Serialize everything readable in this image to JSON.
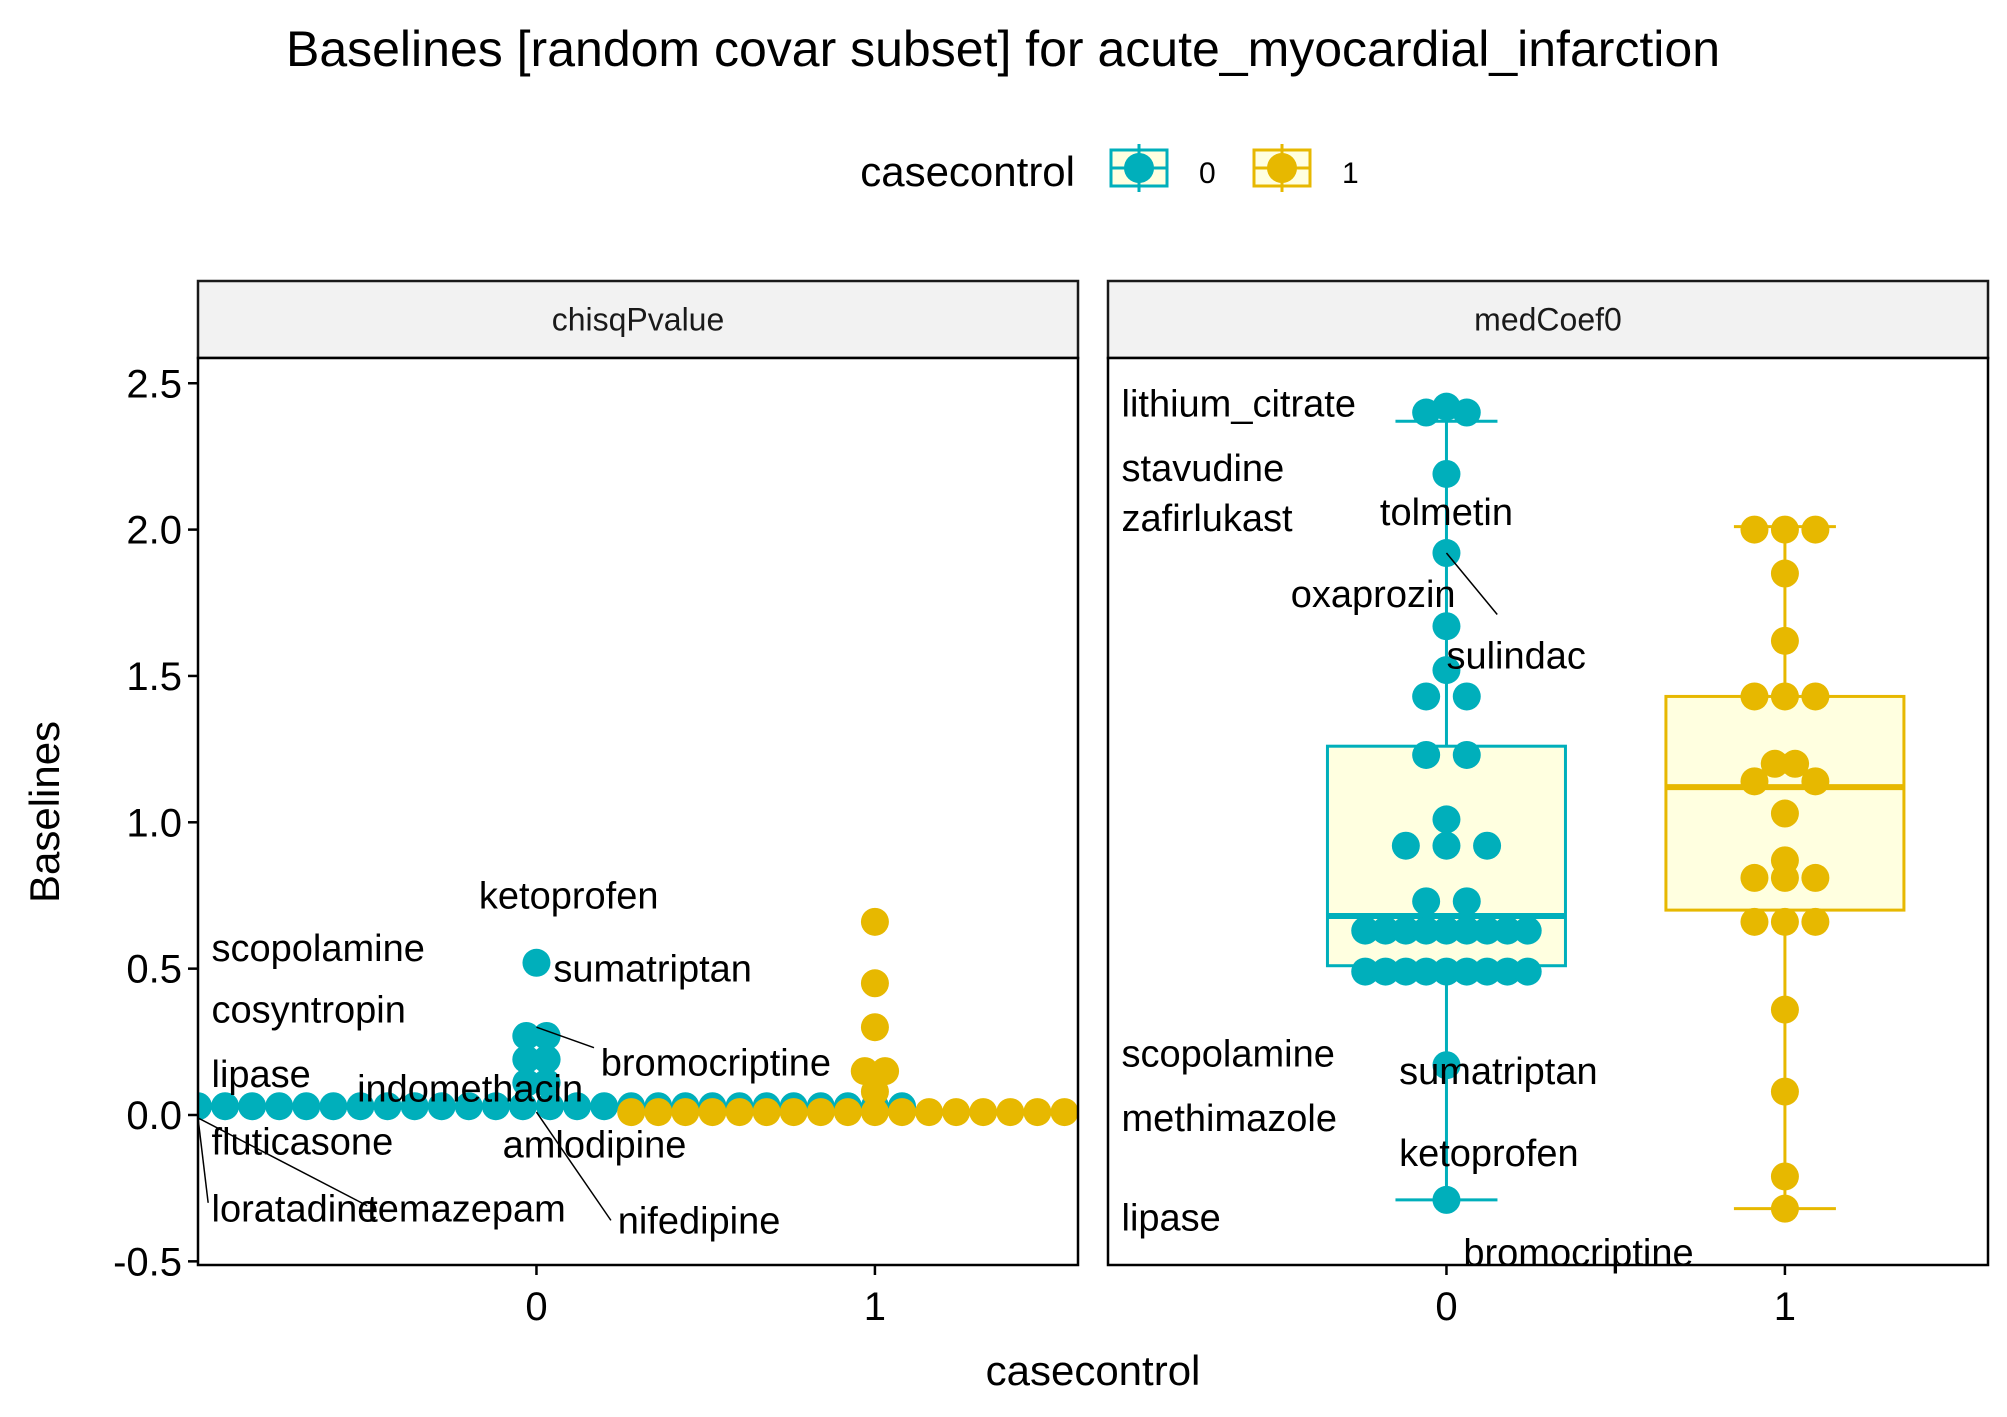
{
  "chart_data": {
    "type": "scatter",
    "title": "Baselines [random covar subset] for acute_myocardial_infarction",
    "xlabel": "casecontrol",
    "ylabel": "Baselines",
    "legend": {
      "title": "casecontrol",
      "position": "top",
      "entries": [
        {
          "label": "0",
          "color": "#00AFBB"
        },
        {
          "label": "1",
          "color": "#E7B800"
        }
      ]
    },
    "categories": [
      "0",
      "1"
    ],
    "ylim": [
      -0.5,
      2.6
    ],
    "yticks": [
      "-0.5",
      "0.0",
      "0.5",
      "1.0",
      "1.5",
      "2.0",
      "2.5"
    ],
    "ytick_values": [
      -0.5,
      0.0,
      0.5,
      1.0,
      1.5,
      2.0,
      2.5
    ],
    "xticks": [
      "0",
      "1"
    ],
    "box_fill": "#FFFFE0",
    "panels": [
      {
        "strip": "chisqPvalue",
        "boxplot": false,
        "series": [
          {
            "name": "0",
            "color": "#00AFBB",
            "points": [
              {
                "x": -1.0,
                "y": 0.03
              },
              {
                "x": -0.92,
                "y": 0.03
              },
              {
                "x": -0.84,
                "y": 0.03
              },
              {
                "x": -0.76,
                "y": 0.03
              },
              {
                "x": -0.68,
                "y": 0.03
              },
              {
                "x": -0.6,
                "y": 0.03
              },
              {
                "x": -0.52,
                "y": 0.03
              },
              {
                "x": -0.44,
                "y": 0.03
              },
              {
                "x": -0.36,
                "y": 0.03
              },
              {
                "x": -0.28,
                "y": 0.03
              },
              {
                "x": -0.2,
                "y": 0.03
              },
              {
                "x": -0.12,
                "y": 0.03
              },
              {
                "x": -0.04,
                "y": 0.03
              },
              {
                "x": 0.04,
                "y": 0.03
              },
              {
                "x": 0.12,
                "y": 0.03
              },
              {
                "x": 0.2,
                "y": 0.03
              },
              {
                "x": 0.28,
                "y": 0.03
              },
              {
                "x": 0.36,
                "y": 0.03
              },
              {
                "x": 0.44,
                "y": 0.03
              },
              {
                "x": 0.52,
                "y": 0.03
              },
              {
                "x": 0.6,
                "y": 0.03
              },
              {
                "x": 0.68,
                "y": 0.03
              },
              {
                "x": 0.76,
                "y": 0.03
              },
              {
                "x": 0.84,
                "y": 0.03
              },
              {
                "x": 0.92,
                "y": 0.03
              },
              {
                "x": 1.0,
                "y": 0.03
              },
              {
                "x": 1.08,
                "y": 0.03
              },
              {
                "x": -0.03,
                "y": 0.27
              },
              {
                "x": 0.03,
                "y": 0.27
              },
              {
                "x": -0.03,
                "y": 0.19
              },
              {
                "x": 0.03,
                "y": 0.19
              },
              {
                "x": -0.03,
                "y": 0.11
              },
              {
                "x": 0.03,
                "y": 0.11
              },
              {
                "x": 0.0,
                "y": 0.52
              }
            ]
          },
          {
            "name": "1",
            "color": "#E7B800",
            "points": [
              {
                "x": 0.28,
                "y": 0.01
              },
              {
                "x": 0.36,
                "y": 0.01
              },
              {
                "x": 0.44,
                "y": 0.01
              },
              {
                "x": 0.52,
                "y": 0.01
              },
              {
                "x": 0.6,
                "y": 0.01
              },
              {
                "x": 0.68,
                "y": 0.01
              },
              {
                "x": 0.76,
                "y": 0.01
              },
              {
                "x": 0.84,
                "y": 0.01
              },
              {
                "x": 0.92,
                "y": 0.01
              },
              {
                "x": 1.0,
                "y": 0.01
              },
              {
                "x": 1.08,
                "y": 0.01
              },
              {
                "x": 1.16,
                "y": 0.01
              },
              {
                "x": 1.24,
                "y": 0.01
              },
              {
                "x": 1.32,
                "y": 0.01
              },
              {
                "x": 1.4,
                "y": 0.01
              },
              {
                "x": 1.48,
                "y": 0.01
              },
              {
                "x": 1.56,
                "y": 0.01
              },
              {
                "x": 1.0,
                "y": 0.66
              },
              {
                "x": 1.0,
                "y": 0.45
              },
              {
                "x": 1.0,
                "y": 0.3
              },
              {
                "x": 0.97,
                "y": 0.15
              },
              {
                "x": 1.03,
                "y": 0.15
              },
              {
                "x": 1.0,
                "y": 0.08
              }
            ]
          }
        ],
        "labels": [
          {
            "text": "scopolamine",
            "x": -0.96,
            "y": 0.57,
            "anchor": "start"
          },
          {
            "text": "cosyntropin",
            "x": -0.96,
            "y": 0.36,
            "anchor": "start"
          },
          {
            "text": "lipase",
            "x": -0.96,
            "y": 0.14,
            "anchor": "start"
          },
          {
            "text": "indomethacin",
            "x": -0.53,
            "y": 0.09,
            "anchor": "start"
          },
          {
            "text": "fluticasone",
            "x": -0.96,
            "y": -0.09,
            "anchor": "start"
          },
          {
            "text": "loratadine",
            "x": -0.96,
            "y": -0.32,
            "anchor": "start"
          },
          {
            "text": "temazepam",
            "x": -0.5,
            "y": -0.32,
            "anchor": "start"
          },
          {
            "text": "ketoprofen",
            "x": -0.17,
            "y": 0.75,
            "anchor": "start"
          },
          {
            "text": "sumatriptan",
            "x": 0.05,
            "y": 0.5,
            "anchor": "start"
          },
          {
            "text": "bromocriptine",
            "x": 0.19,
            "y": 0.18,
            "anchor": "start"
          },
          {
            "text": "amlodipine",
            "x": -0.1,
            "y": -0.1,
            "anchor": "start"
          },
          {
            "text": "nifedipine",
            "x": 0.24,
            "y": -0.36,
            "anchor": "start"
          }
        ],
        "segments": [
          {
            "x1": -1.0,
            "y1": -0.01,
            "x2": -0.97,
            "y2": -0.3
          },
          {
            "x1": -1.0,
            "y1": -0.01,
            "x2": -0.5,
            "y2": -0.31
          },
          {
            "x1": 0.0,
            "y1": 0.01,
            "x2": 0.22,
            "y2": -0.36
          },
          {
            "x1": 0.0,
            "y1": 0.3,
            "x2": 0.17,
            "y2": 0.23
          }
        ]
      },
      {
        "strip": "medCoef0",
        "boxplot": true,
        "series": [
          {
            "name": "0",
            "color": "#00AFBB",
            "box": {
              "q1": 0.51,
              "median": 0.68,
              "q3": 1.26,
              "whisker_low": -0.29,
              "whisker_high": 2.37
            },
            "points": [
              {
                "x": 0.0,
                "y": 2.42
              },
              {
                "x": -0.06,
                "y": 2.4
              },
              {
                "x": 0.06,
                "y": 2.4
              },
              {
                "x": 0.0,
                "y": 2.19
              },
              {
                "x": 0.0,
                "y": 1.92
              },
              {
                "x": 0.0,
                "y": 1.67
              },
              {
                "x": 0.0,
                "y": 1.52
              },
              {
                "x": -0.06,
                "y": 1.43
              },
              {
                "x": 0.06,
                "y": 1.43
              },
              {
                "x": -0.06,
                "y": 1.23
              },
              {
                "x": 0.06,
                "y": 1.23
              },
              {
                "x": 0.0,
                "y": 1.01
              },
              {
                "x": -0.12,
                "y": 0.92
              },
              {
                "x": 0.0,
                "y": 0.92
              },
              {
                "x": 0.12,
                "y": 0.92
              },
              {
                "x": -0.06,
                "y": 0.73
              },
              {
                "x": 0.06,
                "y": 0.73
              },
              {
                "x": -0.24,
                "y": 0.63
              },
              {
                "x": -0.18,
                "y": 0.63
              },
              {
                "x": -0.12,
                "y": 0.63
              },
              {
                "x": -0.06,
                "y": 0.63
              },
              {
                "x": 0.0,
                "y": 0.63
              },
              {
                "x": 0.06,
                "y": 0.63
              },
              {
                "x": 0.12,
                "y": 0.63
              },
              {
                "x": 0.18,
                "y": 0.63
              },
              {
                "x": 0.24,
                "y": 0.63
              },
              {
                "x": -0.24,
                "y": 0.49
              },
              {
                "x": -0.18,
                "y": 0.49
              },
              {
                "x": -0.12,
                "y": 0.49
              },
              {
                "x": -0.06,
                "y": 0.49
              },
              {
                "x": 0.0,
                "y": 0.49
              },
              {
                "x": 0.06,
                "y": 0.49
              },
              {
                "x": 0.12,
                "y": 0.49
              },
              {
                "x": 0.18,
                "y": 0.49
              },
              {
                "x": 0.24,
                "y": 0.49
              },
              {
                "x": 0.0,
                "y": 0.17
              },
              {
                "x": 0.0,
                "y": -0.29
              }
            ]
          },
          {
            "name": "1",
            "color": "#E7B800",
            "box": {
              "q1": 0.7,
              "median": 1.12,
              "q3": 1.43,
              "whisker_low": -0.32,
              "whisker_high": 2.01
            },
            "points": [
              {
                "x": -0.09,
                "y": 2.0
              },
              {
                "x": 0.0,
                "y": 2.0
              },
              {
                "x": 0.09,
                "y": 2.0
              },
              {
                "x": 0.0,
                "y": 1.85
              },
              {
                "x": 0.0,
                "y": 1.62
              },
              {
                "x": -0.09,
                "y": 1.43
              },
              {
                "x": 0.0,
                "y": 1.43
              },
              {
                "x": 0.09,
                "y": 1.43
              },
              {
                "x": -0.03,
                "y": 1.2
              },
              {
                "x": 0.03,
                "y": 1.2
              },
              {
                "x": -0.09,
                "y": 1.14
              },
              {
                "x": 0.09,
                "y": 1.14
              },
              {
                "x": 0.0,
                "y": 1.03
              },
              {
                "x": 0.0,
                "y": 0.87
              },
              {
                "x": -0.09,
                "y": 0.81
              },
              {
                "x": 0.0,
                "y": 0.81
              },
              {
                "x": 0.09,
                "y": 0.81
              },
              {
                "x": -0.09,
                "y": 0.66
              },
              {
                "x": 0.0,
                "y": 0.66
              },
              {
                "x": 0.09,
                "y": 0.66
              },
              {
                "x": 0.0,
                "y": 0.36
              },
              {
                "x": 0.0,
                "y": 0.08
              },
              {
                "x": 0.0,
                "y": -0.21
              },
              {
                "x": 0.0,
                "y": -0.32
              }
            ]
          }
        ],
        "labels": [
          {
            "text": "lithium_citrate",
            "x": -0.96,
            "y": 2.43,
            "anchor": "start"
          },
          {
            "text": "stavudine",
            "x": -0.96,
            "y": 2.21,
            "anchor": "start"
          },
          {
            "text": "zafirlukast",
            "x": -0.96,
            "y": 2.04,
            "anchor": "start"
          },
          {
            "text": "tolmetin",
            "x": 0.0,
            "y": 2.06,
            "anchor": "middle"
          },
          {
            "text": "oxaprozin",
            "x": -0.46,
            "y": 1.78,
            "anchor": "start"
          },
          {
            "text": "sulindac",
            "x": 0.0,
            "y": 1.57,
            "anchor": "start"
          },
          {
            "text": "scopolamine",
            "x": -0.96,
            "y": 0.21,
            "anchor": "start"
          },
          {
            "text": "sumatriptan",
            "x": -0.14,
            "y": 0.15,
            "anchor": "start"
          },
          {
            "text": "methimazole",
            "x": -0.96,
            "y": -0.01,
            "anchor": "start"
          },
          {
            "text": "ketoprofen",
            "x": -0.14,
            "y": -0.13,
            "anchor": "start"
          },
          {
            "text": "lipase",
            "x": -0.96,
            "y": -0.35,
            "anchor": "start"
          },
          {
            "text": "bromocriptine",
            "x": 0.05,
            "y": -0.47,
            "anchor": "start"
          }
        ],
        "segments": [
          {
            "x1": 0.0,
            "y1": 1.92,
            "x2": 0.15,
            "y2": 1.71
          }
        ]
      }
    ]
  }
}
